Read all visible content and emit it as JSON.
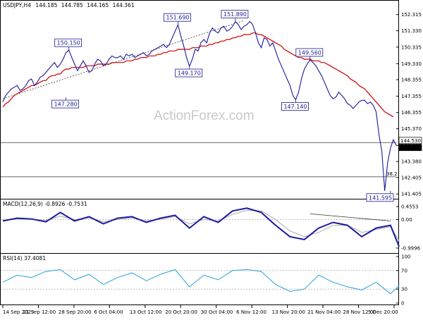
{
  "watermark": "ActionForex.com",
  "chart_data": [
    {
      "type": "line",
      "title": "USDJPY,H4",
      "ohlc": [
        "144.185",
        "144.785",
        "144.165",
        "144.361"
      ],
      "y_ticks": [
        "152.315",
        "151.330",
        "150.335",
        "149.330",
        "148.355",
        "147.355",
        "146.355",
        "145.370",
        "144.361",
        "143.380",
        "142.405",
        "141.405"
      ],
      "ylim": [
        141.2,
        152.6
      ],
      "x_ticks": [
        "14 Sep 2023",
        "21 Sep 12:00",
        "28 Sep 20:00",
        "6 Oct 04:00",
        "13 Oct 12:00",
        "20 Oct 20:00",
        "30 Oct 04:00",
        "6 Nov 12:00",
        "13 Nov 20:00",
        "21 Nov 04:00",
        "28 Nov 12:00",
        "5 Dec 20:00"
      ],
      "series": [
        {
          "values": [
            147.0,
            147.4,
            147.6,
            147.8,
            147.9,
            148.0,
            147.7,
            147.8,
            148.0,
            148.3,
            148.4,
            148.0,
            148.2,
            148.5,
            148.6,
            148.8,
            149.0,
            149.2,
            149.4,
            149.1,
            149.3,
            149.6,
            150.0,
            150.15,
            149.7,
            149.3,
            148.9,
            149.2,
            149.5,
            149.2,
            148.8,
            148.9,
            149.3,
            149.6,
            149.5,
            149.2,
            149.3,
            149.6,
            149.8,
            149.7,
            149.7,
            149.8,
            149.6,
            149.9,
            149.8,
            149.9,
            149.7,
            149.8,
            149.9,
            150.0,
            149.8,
            149.9,
            150.1,
            150.2,
            150.3,
            150.4,
            150.5,
            150.3,
            150.5,
            150.9,
            151.3,
            151.69,
            151.0,
            150.4,
            149.7,
            149.17,
            149.6,
            150.2,
            150.1,
            150.6,
            150.8,
            150.6,
            151.2,
            151.5,
            151.3,
            151.2,
            151.5,
            151.6,
            151.3,
            151.4,
            151.6,
            151.89,
            151.7,
            151.4,
            151.6,
            151.7,
            151.9,
            151.7,
            151.2,
            150.6,
            150.3,
            150.9,
            150.8,
            150.4,
            150.6,
            150.1,
            149.6,
            149.2,
            148.8,
            148.4,
            148.0,
            147.4,
            147.14,
            147.6,
            148.4,
            149.0,
            149.3,
            149.56,
            149.4,
            149.2,
            148.9,
            148.6,
            148.2,
            147.8,
            147.4,
            147.2,
            147.3,
            147.6,
            147.4,
            147.2,
            146.9,
            146.8,
            146.6,
            146.8,
            147.0,
            147.1,
            147.1,
            146.9,
            147.0,
            146.8,
            146.4,
            145.0,
            144.0,
            141.595,
            143.3,
            144.2,
            144.7,
            144.361
          ],
          "color": "#1a1aa0"
        },
        {
          "values": [
            146.7,
            146.9,
            147.0,
            147.2,
            147.4,
            147.5,
            147.6,
            147.7,
            147.8,
            147.9,
            148.0,
            148.0,
            148.1,
            148.2,
            148.3,
            148.3,
            148.5,
            148.6,
            148.6,
            148.7,
            148.7,
            148.9,
            149.0,
            149.0,
            149.1,
            149.1,
            149.1,
            149.1,
            149.1,
            149.2,
            149.2,
            149.2,
            149.2,
            149.3,
            149.3,
            149.3,
            149.3,
            149.3,
            149.4,
            149.4,
            149.4,
            149.4,
            149.4,
            149.5,
            149.5,
            149.5,
            149.6,
            149.6,
            149.7,
            149.7,
            149.7,
            149.8,
            149.8,
            149.8,
            149.9,
            149.9,
            150.0,
            150.0,
            150.1,
            150.1,
            150.1,
            150.2,
            150.2,
            150.2,
            150.2,
            150.2,
            150.3,
            150.3,
            150.3,
            150.4,
            150.4,
            150.4,
            150.5,
            150.5,
            150.6,
            150.6,
            150.7,
            150.7,
            150.8,
            150.8,
            150.9,
            150.9,
            151.0,
            151.0,
            151.1,
            151.1,
            151.1,
            151.2,
            151.2,
            151.1,
            151.1,
            151.0,
            150.9,
            150.8,
            150.7,
            150.6,
            150.5,
            150.4,
            150.2,
            150.1,
            150.0,
            149.9,
            149.8,
            149.7,
            149.7,
            149.6,
            149.6,
            149.6,
            149.5,
            149.5,
            149.5,
            149.4,
            149.4,
            149.3,
            149.2,
            149.1,
            149.0,
            148.9,
            148.8,
            148.7,
            148.6,
            148.4,
            148.3,
            148.2,
            148.0,
            147.9,
            147.8,
            147.6,
            147.4,
            147.2,
            147.0,
            146.8,
            146.6,
            146.4,
            146.3,
            146.2,
            146.1
          ],
          "color": "#cc0000"
        }
      ],
      "annotations": [
        {
          "text": "150.150",
          "x": 23,
          "y": 150.15
        },
        {
          "text": "147.280",
          "x": 22,
          "y": 147.28
        },
        {
          "text": "151.690",
          "x": 61,
          "y": 151.69
        },
        {
          "text": "149.170",
          "x": 65,
          "y": 149.17
        },
        {
          "text": "151.890",
          "x": 81,
          "y": 151.89
        },
        {
          "text": "147.140",
          "x": 102,
          "y": 147.14
        },
        {
          "text": "149.560",
          "x": 107,
          "y": 149.56
        },
        {
          "text": "141.595",
          "x": 135,
          "y": 141.595
        }
      ],
      "price_labels": [
        "144.530",
        "144.361"
      ],
      "hline_levels": [
        144.53,
        142.45
      ],
      "fib_label": "38.2",
      "trendline": [
        {
          "x": 0,
          "y": 147.2
        },
        {
          "x": 84,
          "y": 151.95
        }
      ]
    },
    {
      "type": "line",
      "title": "MACD(12,26,9) -0.8926 -0.7531",
      "y_ticks": [
        "0.4553",
        "0.00",
        "-0.9996"
      ],
      "ylim": [
        -1.1,
        0.58
      ],
      "x": [
        0,
        5,
        10,
        15,
        20,
        25,
        30,
        35,
        40,
        45,
        50,
        55,
        60,
        65,
        70,
        75,
        80,
        85,
        90,
        95,
        100,
        105,
        110,
        115,
        120,
        125,
        130,
        135,
        138
      ],
      "series": [
        {
          "values": [
            -0.05,
            0.05,
            0.02,
            -0.08,
            0.25,
            -0.05,
            0.1,
            -0.15,
            0.05,
            0.1,
            -0.1,
            0.05,
            0.15,
            -0.3,
            0.1,
            -0.1,
            0.3,
            0.4,
            0.25,
            -0.2,
            -0.6,
            -0.7,
            -0.3,
            -0.1,
            -0.2,
            -0.6,
            -0.3,
            -0.2,
            -0.95
          ],
          "color": "#1a1aa0"
        },
        {
          "values": [
            -0.02,
            0.02,
            0.02,
            -0.03,
            0.12,
            0.0,
            0.06,
            -0.08,
            0.0,
            0.06,
            -0.05,
            0.02,
            0.1,
            -0.15,
            0.0,
            -0.05,
            0.18,
            0.33,
            0.3,
            0.0,
            -0.4,
            -0.6,
            -0.45,
            -0.2,
            -0.2,
            -0.45,
            -0.35,
            -0.25,
            -0.75
          ],
          "color": "#aaaaaa"
        }
      ],
      "trendline": [
        {
          "x": 107,
          "y": 0.2
        },
        {
          "x": 135,
          "y": -0.05
        }
      ]
    },
    {
      "type": "line",
      "title": "RSI(14) 37.4081",
      "y_ticks": [
        "100",
        "70",
        "30",
        "0"
      ],
      "ylim": [
        0,
        100
      ],
      "x": [
        0,
        5,
        10,
        15,
        20,
        25,
        30,
        35,
        40,
        45,
        50,
        55,
        60,
        65,
        70,
        75,
        80,
        85,
        90,
        95,
        100,
        105,
        110,
        115,
        120,
        125,
        130,
        135,
        138
      ],
      "series": [
        {
          "values": [
            45,
            60,
            55,
            68,
            72,
            50,
            62,
            40,
            55,
            65,
            48,
            62,
            72,
            35,
            60,
            50,
            70,
            72,
            68,
            40,
            25,
            30,
            60,
            45,
            35,
            28,
            45,
            20,
            37.4
          ],
          "color": "#2aa0d8"
        }
      ]
    }
  ]
}
